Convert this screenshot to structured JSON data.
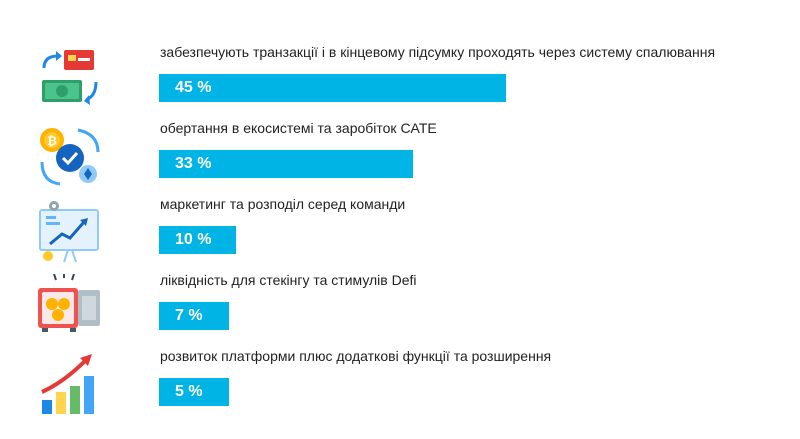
{
  "chart_data": {
    "type": "bar",
    "orientation": "horizontal",
    "bar_color": "#00b4e6",
    "xlim": [
      0,
      100
    ],
    "categories": [
      "забезпечують транзакції і в кінцевому підсумку проходять через систему спалювання",
      "обертання в екосистемі та заробіток CATE",
      "маркетинг та розподіл серед команди",
      "ліквідність для стекінгу та стимулів Defi",
      "розвиток платформи плюс додаткові функції та розширення"
    ],
    "values": [
      45,
      33,
      10,
      7,
      5
    ],
    "value_labels": [
      "45 %",
      "33 %",
      "10 %",
      "7 %",
      "5 %"
    ],
    "icons": [
      "money-exchange-icon",
      "crypto-coin-cycle-icon",
      "marketing-presentation-icon",
      "safe-coins-icon",
      "growth-chart-icon"
    ]
  }
}
